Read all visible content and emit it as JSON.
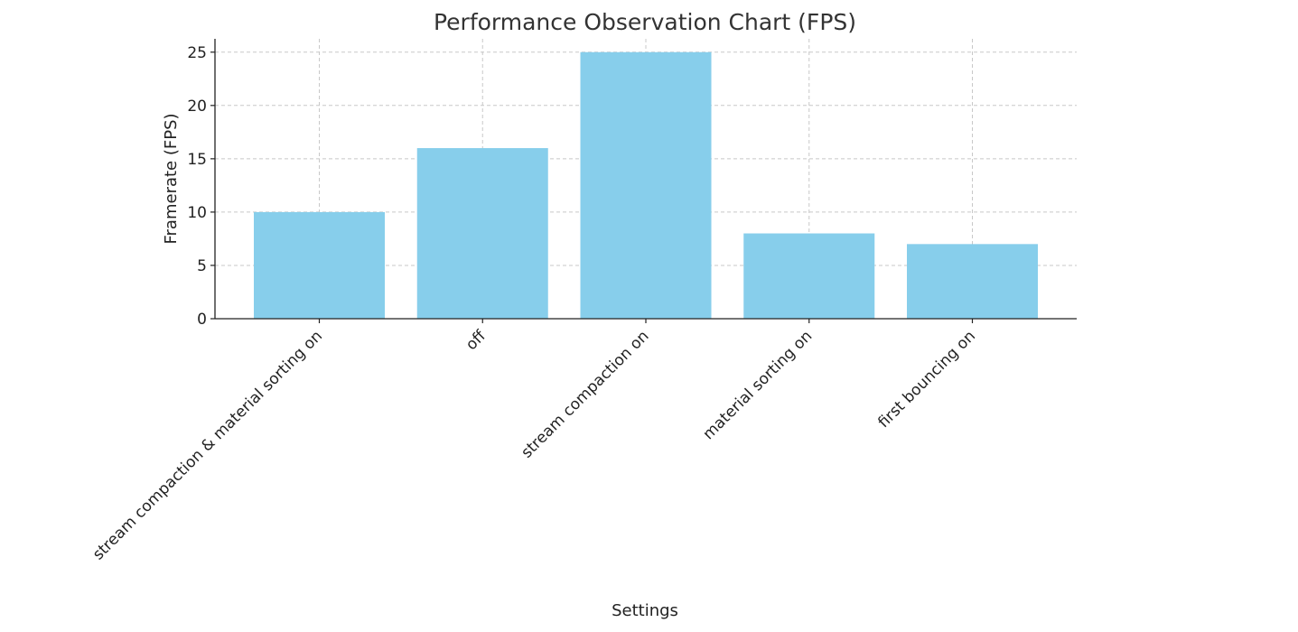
{
  "chart_data": {
    "type": "bar",
    "title": "Performance Observation Chart (FPS)",
    "xlabel": "Settings",
    "ylabel": "Framerate (FPS)",
    "categories": [
      "stream compaction & material sorting on",
      "off",
      "stream compaction on",
      "material sorting on",
      "first bouncing on"
    ],
    "values": [
      10,
      16,
      25,
      8,
      7
    ],
    "ylim": [
      0,
      26.25
    ],
    "yticks": [
      0,
      5,
      10,
      15,
      20,
      25
    ],
    "grid": true,
    "bar_color": "#87ceeb"
  }
}
